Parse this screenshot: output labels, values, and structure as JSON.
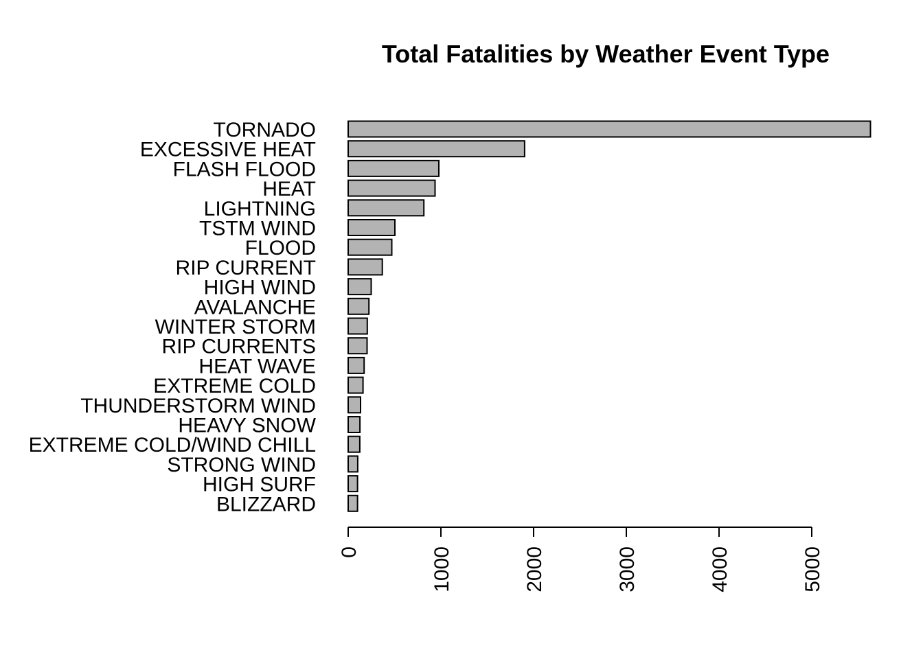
{
  "chart_data": {
    "type": "bar",
    "orientation": "horizontal",
    "title": "Total Fatalities by Weather Event Type",
    "xlabel": "",
    "ylabel": "",
    "categories": [
      "TORNADO",
      "EXCESSIVE HEAT",
      "FLASH FLOOD",
      "HEAT",
      "LIGHTNING",
      "TSTM WIND",
      "FLOOD",
      "RIP CURRENT",
      "HIGH WIND",
      "AVALANCHE",
      "WINTER STORM",
      "RIP CURRENTS",
      "HEAT WAVE",
      "EXTREME COLD",
      "THUNDERSTORM WIND",
      "HEAVY SNOW",
      "EXTREME COLD/WIND CHILL",
      "STRONG WIND",
      "HIGH SURF",
      "BLIZZARD"
    ],
    "values": [
      5633,
      1903,
      978,
      937,
      816,
      504,
      470,
      368,
      248,
      224,
      206,
      204,
      172,
      160,
      133,
      127,
      125,
      103,
      101,
      101
    ],
    "xlim": [
      0,
      5633
    ],
    "ticks": [
      0,
      1000,
      2000,
      3000,
      4000,
      5000
    ],
    "tick_labels": [
      "0",
      "1000",
      "2000",
      "3000",
      "4000",
      "5000"
    ],
    "tick_label_orientation": "vertical",
    "grid": false,
    "bar_color": "#b3b3b3",
    "bar_outline_color": "#000000"
  }
}
